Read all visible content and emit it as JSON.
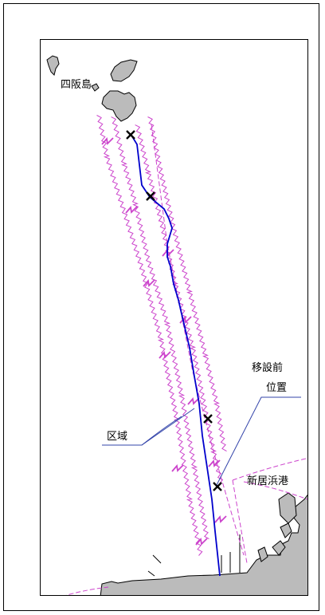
{
  "labels": {
    "island": "四阪島",
    "relocation_line1": "移設前",
    "relocation_line2": "位置",
    "area": "区域",
    "port": "新居浜港"
  },
  "colors": {
    "route": "#0000cc",
    "boundary": "#cc44cc",
    "callout": "#3344aa",
    "land": "#bbbbbb",
    "marker": "#000000"
  },
  "markers": [
    {
      "name": "marker-1"
    },
    {
      "name": "marker-2"
    },
    {
      "name": "marker-3"
    },
    {
      "name": "marker-4"
    }
  ]
}
